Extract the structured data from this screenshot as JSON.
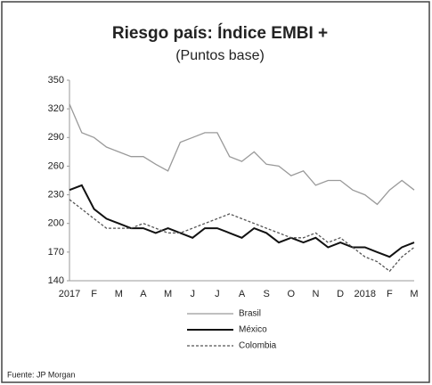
{
  "chart_data": {
    "type": "line",
    "title": "Riesgo país: Índice EMBI +",
    "subtitle": "(Puntos base)",
    "source": "Fuente: JP Morgan",
    "categories": [
      "2017",
      null,
      "F",
      null,
      "M",
      null,
      "A",
      null,
      "M",
      null,
      "J",
      null,
      "J",
      null,
      "A",
      null,
      "S",
      null,
      "O",
      null,
      "N",
      null,
      "D",
      null,
      "2018",
      null,
      "F",
      null,
      "M"
    ],
    "series": [
      {
        "name": "Brasil",
        "color": "#9a9a9a",
        "dashed": false,
        "values": [
          325,
          295,
          290,
          280,
          275,
          270,
          270,
          262,
          255,
          285,
          290,
          295,
          295,
          270,
          265,
          275,
          262,
          260,
          250,
          255,
          240,
          245,
          245,
          235,
          230,
          220,
          235,
          245,
          235
        ]
      },
      {
        "name": "México",
        "color": "#111111",
        "dashed": false,
        "values": [
          235,
          240,
          215,
          205,
          200,
          195,
          195,
          190,
          195,
          190,
          185,
          195,
          195,
          190,
          185,
          195,
          190,
          180,
          185,
          180,
          185,
          175,
          180,
          175,
          175,
          170,
          165,
          175,
          180
        ]
      },
      {
        "name": "Colombia",
        "color": "#555555",
        "dashed": true,
        "values": [
          225,
          215,
          205,
          195,
          195,
          195,
          200,
          195,
          190,
          190,
          195,
          200,
          205,
          210,
          205,
          200,
          195,
          190,
          185,
          185,
          190,
          180,
          185,
          175,
          165,
          160,
          150,
          165,
          175
        ]
      }
    ],
    "ylim": [
      140,
      350
    ],
    "yticks": [
      140,
      170,
      200,
      230,
      260,
      290,
      320,
      350
    ],
    "legend": "bottom"
  }
}
